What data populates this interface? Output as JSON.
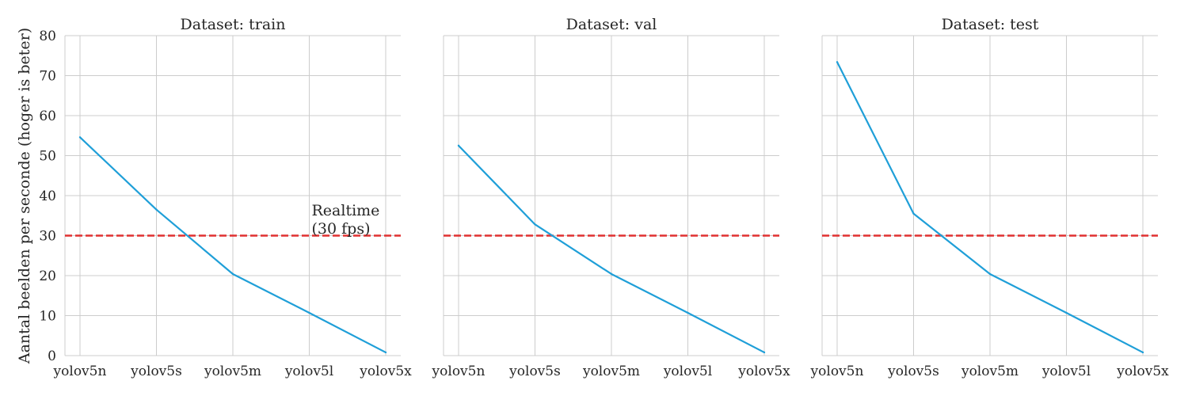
{
  "chart_data": {
    "type": "line",
    "ylabel": "Aantal beelden per seconde (hoger is beter)",
    "ylim": [
      0,
      80
    ],
    "yticks": [
      0,
      10,
      20,
      30,
      40,
      50,
      60,
      70,
      80
    ],
    "grid": true,
    "categories": [
      "yolov5n",
      "yolov5s",
      "yolov5m",
      "yolov5l",
      "yolov5x"
    ],
    "reference_line": {
      "y": 30,
      "label_line1": "Realtime",
      "label_line2": "(30 fps)",
      "color": "#e03030"
    },
    "series_color": "#1f9fd8",
    "panels": [
      {
        "title": "Dataset: train",
        "values": [
          54.6,
          36.5,
          20.4,
          10.7,
          0.8
        ],
        "show_reference_label": true
      },
      {
        "title": "Dataset: val",
        "values": [
          52.5,
          32.8,
          20.4,
          10.7,
          0.8
        ],
        "show_reference_label": false
      },
      {
        "title": "Dataset: test",
        "values": [
          73.4,
          35.5,
          20.4,
          10.7,
          0.8
        ],
        "show_reference_label": false
      }
    ]
  }
}
